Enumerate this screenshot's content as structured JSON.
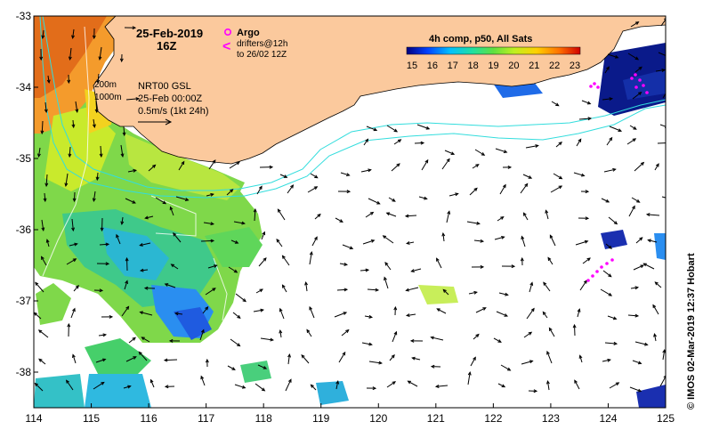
{
  "map": {
    "date_label": "25-Feb-2019",
    "time_label": "16Z",
    "argo_label": "Argo",
    "drifters_label": "drifters@12h",
    "drifters_until_label": "to 26/02 12Z",
    "isobath_200_label": "200m",
    "isobath_1000_label": "1000m",
    "product_label": "NRT00 GSL",
    "product_time_label": "25-Feb 00:00Z",
    "scale_label": "0.5m/s (1kt 24h)",
    "colorbar_title": "4h comp, p50, All Sats",
    "colorbar_ticks": [
      "15",
      "16",
      "17",
      "18",
      "19",
      "20",
      "21",
      "22",
      "23"
    ],
    "credit": "© IMOS 02-Mar-2019 12:37 Hobart",
    "x_ticks": [
      "114",
      "115",
      "116",
      "117",
      "118",
      "119",
      "120",
      "121",
      "122",
      "123",
      "124",
      "125"
    ],
    "y_ticks": [
      "-33",
      "-34",
      "-35",
      "-36",
      "-37",
      "-38"
    ],
    "lon_range": [
      114,
      125
    ],
    "lat_range": [
      -38.5,
      -33
    ],
    "colors": {
      "land": "#fbc99d",
      "isobath": "#33dddd",
      "argo": "#ff00ff",
      "colormap": [
        "#00007f",
        "#0040ff",
        "#00c0ff",
        "#20e0a0",
        "#60e040",
        "#c0f020",
        "#ffd000",
        "#ff7000",
        "#d00000"
      ]
    }
  }
}
